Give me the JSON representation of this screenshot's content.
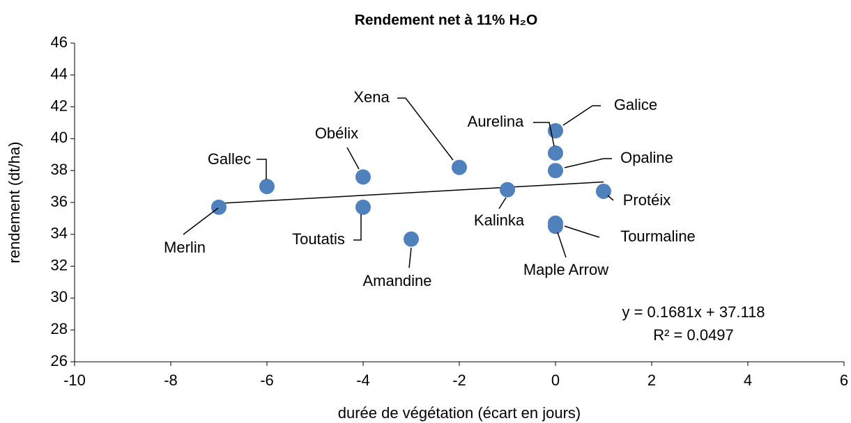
{
  "chart_data": {
    "type": "scatter",
    "title": "Rendement net à 11% H₂O",
    "x_label": "durée de végétation (écart en jours)",
    "y_label": "rendement (dt/ha)",
    "xlim": [
      -10,
      6
    ],
    "xticks": [
      -10,
      -8,
      -6,
      -4,
      -2,
      0,
      2,
      4,
      6
    ],
    "ylim": [
      26,
      46
    ],
    "yticks": [
      26,
      28,
      30,
      32,
      34,
      36,
      38,
      40,
      42,
      44,
      46
    ],
    "color": "#4f81bd",
    "labels": [
      "Merlin",
      "Gallec",
      "Obélix",
      "Toutatis",
      "Amandine",
      "Xena",
      "Kalinka",
      "Galice",
      "Aurelina",
      "Opaline",
      "Protéix",
      "Tourmaline",
      "Maple Arrow"
    ],
    "x": [
      -7,
      -6,
      -4,
      -4,
      -3,
      -2,
      -1,
      0,
      0,
      0,
      1,
      0,
      0
    ],
    "values": [
      35.7,
      37.0,
      37.6,
      35.7,
      33.7,
      38.2,
      36.8,
      40.5,
      39.1,
      38.0,
      36.7,
      34.7,
      34.5
    ],
    "trendline": {
      "slope": 0.1681,
      "intercept": 37.118,
      "equation": "y = 0.1681x + 37.118",
      "r2": "R² = 0.0497"
    }
  }
}
